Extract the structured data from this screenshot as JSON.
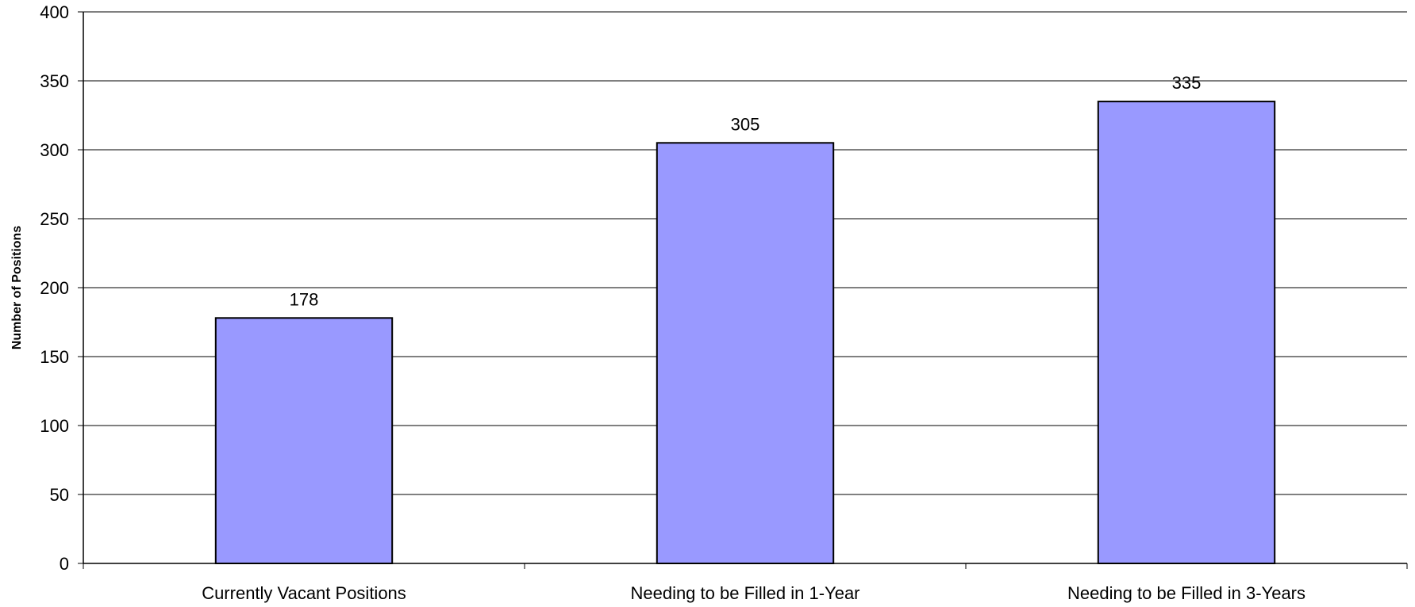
{
  "chart_data": {
    "type": "bar",
    "categories": [
      "Currently Vacant Positions",
      "Needing to be Filled in 1-Year",
      "Needing to be Filled in 3-Years"
    ],
    "values": [
      178,
      305,
      335
    ],
    "data_labels": [
      "178",
      "305",
      "335"
    ],
    "ylabel": "Number of Positions",
    "xlabel": "",
    "ylim": [
      0,
      400
    ],
    "yticks": [
      0,
      50,
      100,
      150,
      200,
      250,
      300,
      350,
      400
    ],
    "ytick_labels": [
      "0",
      "50",
      "100",
      "150",
      "200",
      "250",
      "300",
      "350",
      "400"
    ],
    "grid": true,
    "legend": "none",
    "colors": {
      "bar_fill": "#9999ff",
      "bar_stroke": "#000000",
      "grid": "#000000",
      "axis": "#000000"
    }
  }
}
